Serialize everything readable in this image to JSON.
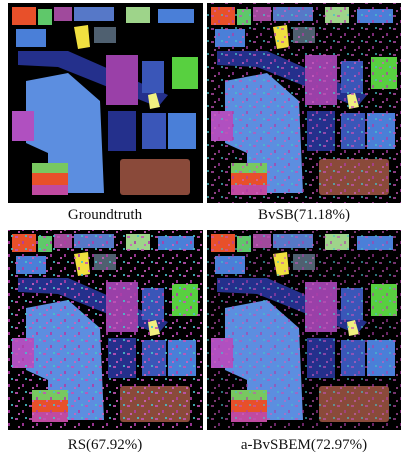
{
  "panels": [
    {
      "caption": "Groundtruth"
    },
    {
      "caption": "BvSB(71.18%)"
    },
    {
      "caption": "RS(67.92%)"
    },
    {
      "caption": "a-BvSBEM(72.97%)"
    }
  ]
}
